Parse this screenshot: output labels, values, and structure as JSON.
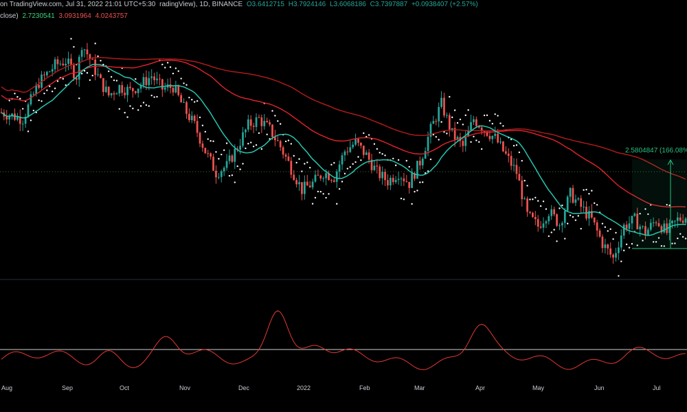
{
  "header": {
    "line1": {
      "source": "on TradingView.com, Jul 31, 2022 21:01 UTC+5:30",
      "symbol_info": "radingView), 1D, BINANCE",
      "open": "O3.6412715",
      "high": "H3.7924146",
      "low": "L3.6068186",
      "close": "C3.7397887",
      "change": "+0.0938407 (+2.57%)"
    },
    "line2": {
      "label": "close)",
      "value1": "2.7230541",
      "value2": "3.0931964",
      "value3": "4.0243757"
    }
  },
  "measure": {
    "label": "2.5804847 (166.08%)"
  },
  "colors": {
    "background": "#000000",
    "up_candle": "#26a69a",
    "down_candle": "#ef5350",
    "ma_fast": "#26c6b0",
    "ma_slow_1": "#e3232d",
    "ma_slow_2": "#b71c1c",
    "psar": "#ffffff",
    "indicator": "#e53935",
    "measure": "#26c281"
  },
  "chart_data": {
    "type": "candlestick",
    "symbol_timeframe": "1D",
    "exchange": "BINANCE",
    "x_tick_labels": [
      "Aug",
      "Sep",
      "Oct",
      "Nov",
      "Dec",
      "2022",
      "Feb",
      "Mar",
      "Apr",
      "May",
      "Jun",
      "Jul"
    ],
    "last_ohlc": {
      "open": 3.6412715,
      "high": 3.7924146,
      "low": 3.6068186,
      "close": 3.7397887,
      "change": 0.0938407,
      "change_pct": 2.57
    },
    "moving_averages": [
      2.7230541,
      3.0931964,
      4.0243757
    ],
    "measured_move": {
      "value": 2.5804847,
      "pct": 166.08
    },
    "price_path_norm": [
      [
        0,
        0.58
      ],
      [
        8,
        0.55
      ],
      [
        14,
        0.72
      ],
      [
        20,
        0.8
      ],
      [
        24,
        0.82
      ],
      [
        28,
        0.75
      ],
      [
        30,
        0.9
      ],
      [
        33,
        0.83
      ],
      [
        37,
        0.72
      ],
      [
        40,
        0.66
      ],
      [
        44,
        0.7
      ],
      [
        48,
        0.68
      ],
      [
        52,
        0.71
      ],
      [
        56,
        0.75
      ],
      [
        60,
        0.69
      ],
      [
        64,
        0.7
      ],
      [
        68,
        0.6
      ],
      [
        72,
        0.52
      ],
      [
        76,
        0.4
      ],
      [
        80,
        0.3
      ],
      [
        84,
        0.33
      ],
      [
        88,
        0.42
      ],
      [
        92,
        0.52
      ],
      [
        96,
        0.55
      ],
      [
        100,
        0.5
      ],
      [
        104,
        0.42
      ],
      [
        108,
        0.32
      ],
      [
        112,
        0.22
      ],
      [
        116,
        0.25
      ],
      [
        120,
        0.3
      ],
      [
        124,
        0.28
      ],
      [
        128,
        0.4
      ],
      [
        132,
        0.44
      ],
      [
        136,
        0.38
      ],
      [
        140,
        0.3
      ],
      [
        144,
        0.26
      ],
      [
        148,
        0.3
      ],
      [
        152,
        0.25
      ],
      [
        156,
        0.35
      ],
      [
        160,
        0.5
      ],
      [
        164,
        0.62
      ],
      [
        168,
        0.48
      ],
      [
        172,
        0.42
      ],
      [
        176,
        0.55
      ],
      [
        180,
        0.5
      ],
      [
        184,
        0.46
      ],
      [
        188,
        0.38
      ],
      [
        192,
        0.3
      ],
      [
        196,
        0.1
      ],
      [
        200,
        0.05
      ],
      [
        204,
        0.12
      ],
      [
        208,
        0.06
      ],
      [
        212,
        0.2
      ],
      [
        216,
        0.14
      ],
      [
        220,
        0.08
      ],
      [
        224,
        -0.03
      ],
      [
        228,
        -0.1
      ],
      [
        232,
        0.05
      ],
      [
        236,
        0.08
      ],
      [
        240,
        0.02
      ],
      [
        244,
        0.08
      ],
      [
        248,
        0.02
      ],
      [
        252,
        0.08
      ],
      [
        256,
        0.1
      ]
    ]
  }
}
